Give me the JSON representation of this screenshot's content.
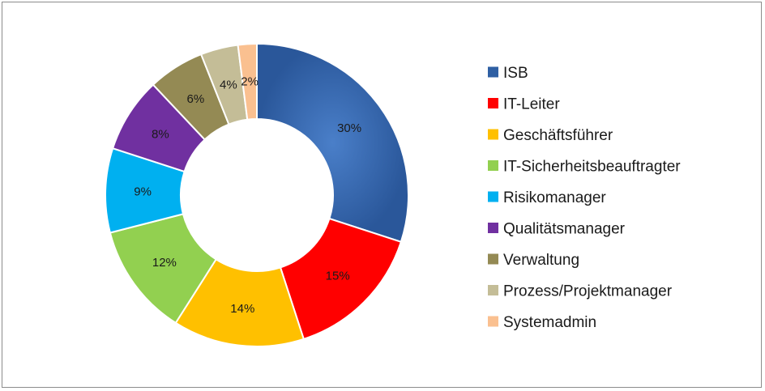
{
  "chart_data": {
    "type": "pie",
    "variant": "donut",
    "title": "",
    "legend_position": "right",
    "series": [
      {
        "name": "ISB",
        "value": 30,
        "label": "30%",
        "color": "#2e5fa3"
      },
      {
        "name": "IT-Leiter",
        "value": 15,
        "label": "15%",
        "color": "#ff0000"
      },
      {
        "name": "Geschäftsführer",
        "value": 14,
        "label": "14%",
        "color": "#ffc000"
      },
      {
        "name": "IT-Sicherheitsbeauftragter",
        "value": 12,
        "label": "12%",
        "color": "#92d050"
      },
      {
        "name": "Risikomanager",
        "value": 9,
        "label": "9%",
        "color": "#00b0f0"
      },
      {
        "name": "Qualitätsmanager",
        "value": 8,
        "label": "8%",
        "color": "#7030a0"
      },
      {
        "name": "Verwaltung",
        "value": 6,
        "label": "6%",
        "color": "#948a54"
      },
      {
        "name": "Prozess/Projektmanager",
        "value": 4,
        "label": "4%",
        "color": "#c4bd97"
      },
      {
        "name": "Systemadmin",
        "value": 2,
        "label": "2%",
        "color": "#fac090"
      }
    ]
  }
}
